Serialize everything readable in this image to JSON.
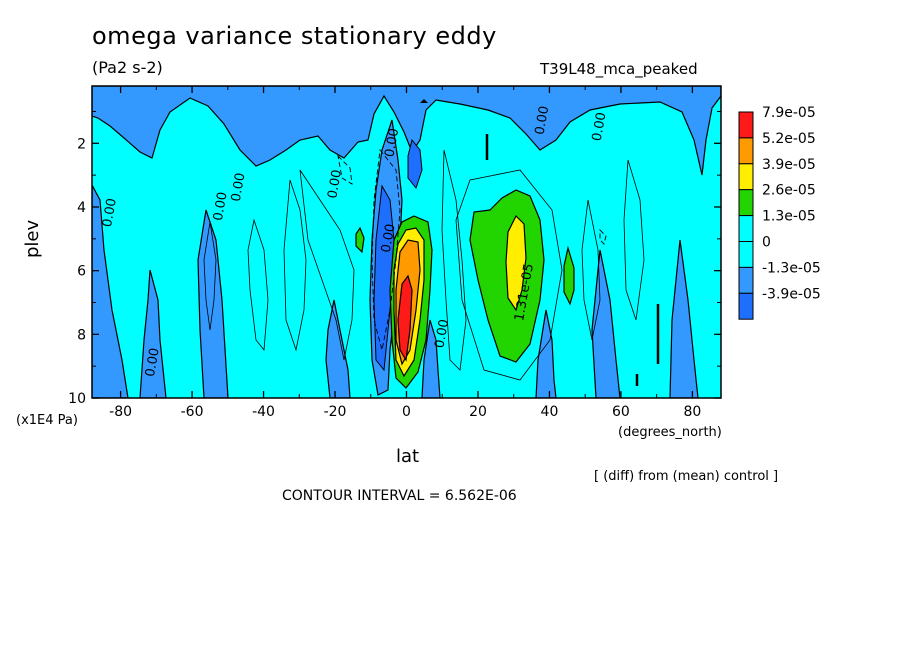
{
  "chart_data": {
    "type": "heatmap",
    "title": "omega variance stationary eddy",
    "units": "(Pa2 s-2)",
    "dataset_label": "T39L48_mca_peaked",
    "xlabel": "lat",
    "xunits": "(degrees_north)",
    "ylabel": "plev",
    "yunits": "(x1E4 Pa)",
    "note": "[ (diff) from (mean) control ]",
    "contour_interval": "CONTOUR INTERVAL = 6.562E-06",
    "xlim": [
      -88,
      88
    ],
    "ylim": [
      10,
      0.2
    ],
    "x_ticks": [
      -80,
      -60,
      -40,
      -20,
      0,
      20,
      40,
      60,
      80
    ],
    "y_ticks": [
      2,
      4,
      6,
      8,
      10
    ],
    "colorbar": [
      {
        "label": "7.9e-05",
        "color": "#ff1a1a"
      },
      {
        "label": "5.2e-05",
        "color": "#ff9a00"
      },
      {
        "label": "3.9e-05",
        "color": "#ffee00"
      },
      {
        "label": "2.6e-05",
        "color": "#22d400"
      },
      {
        "label": "1.3e-05",
        "color": "#00ffff"
      },
      {
        "label": "0",
        "color": "#00ffff"
      },
      {
        "label": "-1.3e-05",
        "color": "#3399ff"
      },
      {
        "label": "-3.9e-05",
        "color": "#1f6fff"
      }
    ],
    "contour_labels": [
      {
        "text": "0.00",
        "lat": -82,
        "plev": 4.2
      },
      {
        "text": "0.00",
        "lat": -70,
        "plev": 8.9
      },
      {
        "text": "0.00",
        "lat": -51,
        "plev": 4.0
      },
      {
        "text": "0.00",
        "lat": -46,
        "plev": 3.4
      },
      {
        "text": "0.00",
        "lat": -19,
        "plev": 3.3
      },
      {
        "text": "0.00",
        "lat": -3,
        "plev": 2.0
      },
      {
        "text": "0.00",
        "lat": -4,
        "plev": 5.0
      },
      {
        "text": "0.00",
        "lat": 11,
        "plev": 8.0
      },
      {
        "text": "0.00",
        "lat": 39,
        "plev": 1.3
      },
      {
        "text": "0.00",
        "lat": 55,
        "plev": 1.5
      },
      {
        "text": "1.31e-05",
        "lat": 34,
        "plev": 6.7
      }
    ]
  }
}
